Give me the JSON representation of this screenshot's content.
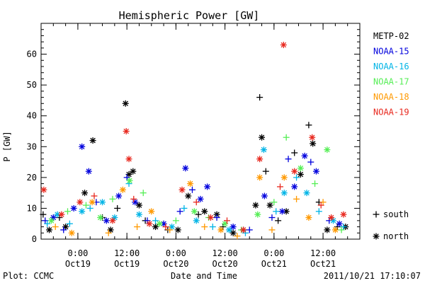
{
  "chart_data": {
    "type": "scatter",
    "title": "Hemispheric Power [GW]",
    "ylabel": "P [GW]",
    "xlabel": "Date and Time",
    "ylim": [
      0,
      70
    ],
    "yticks": [
      0,
      10,
      20,
      30,
      40,
      50,
      60
    ],
    "xlim": [
      "2011-10-18T15:00",
      "2011-10-21T21:00"
    ],
    "xticks": [
      {
        "time": "2011-10-19T00:00",
        "label_time": "0:00",
        "label_date": "Oct19"
      },
      {
        "time": "2011-10-19T12:00",
        "label_time": "12:00",
        "label_date": "Oct19"
      },
      {
        "time": "2011-10-20T00:00",
        "label_time": "0:00",
        "label_date": "Oct20"
      },
      {
        "time": "2011-10-20T12:00",
        "label_time": "12:00",
        "label_date": "Oct20"
      },
      {
        "time": "2011-10-21T00:00",
        "label_time": "0:00",
        "label_date": "Oct21"
      },
      {
        "time": "2011-10-21T12:00",
        "label_time": "12:00",
        "label_date": "Oct21"
      }
    ],
    "symbols": [
      {
        "marker": "+",
        "label": "south"
      },
      {
        "marker": "*",
        "label": "north"
      }
    ],
    "series": [
      {
        "name": "METP-02",
        "color": "#000000",
        "points": [
          [
            "2011-10-18T15:30",
            8,
            "+"
          ],
          [
            "2011-10-18T17:00",
            3,
            "*"
          ],
          [
            "2011-10-18T19:30",
            7,
            "+"
          ],
          [
            "2011-10-18T21:00",
            4,
            "*"
          ],
          [
            "2011-10-19T01:40",
            15,
            "*"
          ],
          [
            "2011-10-19T03:40",
            32,
            "*"
          ],
          [
            "2011-10-19T06:00",
            7,
            "+"
          ],
          [
            "2011-10-19T08:00",
            3,
            "*"
          ],
          [
            "2011-10-19T09:40",
            10,
            "+"
          ],
          [
            "2011-10-19T11:40",
            44,
            "*"
          ],
          [
            "2011-10-19T12:30",
            21,
            "*"
          ],
          [
            "2011-10-19T13:30",
            22,
            "*"
          ],
          [
            "2011-10-19T15:00",
            11,
            "*"
          ],
          [
            "2011-10-19T16:30",
            6,
            "+"
          ],
          [
            "2011-10-19T19:00",
            4,
            "*"
          ],
          [
            "2011-10-19T22:00",
            3,
            "+"
          ],
          [
            "2011-10-20T00:30",
            3,
            "*"
          ],
          [
            "2011-10-20T03:00",
            14,
            "*"
          ],
          [
            "2011-10-20T05:30",
            8,
            "+"
          ],
          [
            "2011-10-20T07:00",
            9,
            "*"
          ],
          [
            "2011-10-20T10:00",
            8,
            "*"
          ],
          [
            "2011-10-20T11:30",
            4,
            "+"
          ],
          [
            "2011-10-20T14:00",
            2,
            "*"
          ],
          [
            "2011-10-20T16:30",
            3,
            "+"
          ],
          [
            "2011-10-20T19:30",
            11,
            "*"
          ],
          [
            "2011-10-20T20:30",
            46,
            "+"
          ],
          [
            "2011-10-20T21:00",
            33,
            "*"
          ],
          [
            "2011-10-20T22:00",
            22,
            "+"
          ],
          [
            "2011-10-20T23:00",
            11,
            "*"
          ],
          [
            "2011-10-21T01:00",
            6,
            "+"
          ],
          [
            "2011-10-21T03:00",
            9,
            "*"
          ],
          [
            "2011-10-21T05:00",
            28,
            "+"
          ],
          [
            "2011-10-21T06:30",
            21,
            "*"
          ],
          [
            "2011-10-21T08:30",
            37,
            "+"
          ],
          [
            "2011-10-21T09:30",
            31,
            "*"
          ],
          [
            "2011-10-21T11:00",
            12,
            "+"
          ],
          [
            "2011-10-21T13:00",
            3,
            "*"
          ],
          [
            "2011-10-21T15:30",
            4,
            "+"
          ],
          [
            "2011-10-21T17:30",
            4,
            "*"
          ]
        ]
      },
      {
        "name": "NOAA-15",
        "color": "#0000dd",
        "points": [
          [
            "2011-10-18T16:00",
            6,
            "+"
          ],
          [
            "2011-10-18T18:00",
            7,
            "*"
          ],
          [
            "2011-10-18T20:30",
            3,
            "+"
          ],
          [
            "2011-10-18T23:00",
            10,
            "*"
          ],
          [
            "2011-10-19T01:00",
            30,
            "*"
          ],
          [
            "2011-10-19T02:40",
            22,
            "*"
          ],
          [
            "2011-10-19T04:30",
            12,
            "+"
          ],
          [
            "2011-10-19T07:00",
            6,
            "*"
          ],
          [
            "2011-10-19T10:00",
            14,
            "*"
          ],
          [
            "2011-10-19T12:00",
            20,
            "+"
          ],
          [
            "2011-10-19T14:00",
            12,
            "*"
          ],
          [
            "2011-10-19T17:00",
            6,
            "+"
          ],
          [
            "2011-10-19T21:00",
            5,
            "*"
          ],
          [
            "2011-10-20T01:00",
            9,
            "+"
          ],
          [
            "2011-10-20T02:20",
            23,
            "*"
          ],
          [
            "2011-10-20T04:00",
            16,
            "+"
          ],
          [
            "2011-10-20T06:00",
            13,
            "*"
          ],
          [
            "2011-10-20T07:40",
            17,
            "*"
          ],
          [
            "2011-10-20T10:00",
            7,
            "+"
          ],
          [
            "2011-10-20T14:00",
            4,
            "*"
          ],
          [
            "2011-10-20T18:00",
            3,
            "+"
          ],
          [
            "2011-10-20T21:40",
            14,
            "*"
          ],
          [
            "2011-10-20T23:30",
            7,
            "+"
          ],
          [
            "2011-10-21T02:00",
            9,
            "*"
          ],
          [
            "2011-10-21T03:30",
            26,
            "+"
          ],
          [
            "2011-10-21T05:00",
            17,
            "*"
          ],
          [
            "2011-10-21T07:30",
            27,
            "*"
          ],
          [
            "2011-10-21T09:00",
            25,
            "+"
          ],
          [
            "2011-10-21T10:20",
            22,
            "*"
          ],
          [
            "2011-10-21T13:30",
            6,
            "+"
          ],
          [
            "2011-10-21T16:00",
            5,
            "*"
          ]
        ]
      },
      {
        "name": "NOAA-16",
        "color": "#00b4e6",
        "points": [
          [
            "2011-10-18T16:30",
            5,
            "+"
          ],
          [
            "2011-10-18T19:00",
            8,
            "*"
          ],
          [
            "2011-10-18T22:00",
            5,
            "+"
          ],
          [
            "2011-10-19T01:00",
            9,
            "*"
          ],
          [
            "2011-10-19T03:00",
            10,
            "+"
          ],
          [
            "2011-10-19T06:00",
            12,
            "*"
          ],
          [
            "2011-10-19T09:00",
            7,
            "*"
          ],
          [
            "2011-10-19T12:30",
            18,
            "+"
          ],
          [
            "2011-10-19T15:00",
            8,
            "*"
          ],
          [
            "2011-10-19T19:00",
            6,
            "+"
          ],
          [
            "2011-10-19T23:00",
            4,
            "*"
          ],
          [
            "2011-10-20T02:00",
            10,
            "+"
          ],
          [
            "2011-10-20T05:00",
            6,
            "*"
          ],
          [
            "2011-10-20T09:00",
            4,
            "+"
          ],
          [
            "2011-10-20T13:00",
            3,
            "*"
          ],
          [
            "2011-10-20T17:00",
            2,
            "+"
          ],
          [
            "2011-10-20T21:30",
            29,
            "*"
          ],
          [
            "2011-10-21T00:30",
            9,
            "+"
          ],
          [
            "2011-10-21T02:30",
            15,
            "*"
          ],
          [
            "2011-10-21T05:30",
            20,
            "+"
          ],
          [
            "2011-10-21T08:00",
            15,
            "*"
          ],
          [
            "2011-10-21T11:00",
            9,
            "+"
          ],
          [
            "2011-10-21T14:30",
            6,
            "*"
          ],
          [
            "2011-10-21T17:00",
            4,
            "+"
          ]
        ]
      },
      {
        "name": "NOAA-17",
        "color": "#55ee55",
        "points": [
          [
            "2011-10-18T17:30",
            6,
            "*"
          ],
          [
            "2011-10-18T21:30",
            9,
            "+"
          ],
          [
            "2011-10-19T02:00",
            11,
            "+"
          ],
          [
            "2011-10-19T05:30",
            7,
            "*"
          ],
          [
            "2011-10-19T08:30",
            13,
            "+"
          ],
          [
            "2011-10-19T12:40",
            19,
            "*"
          ],
          [
            "2011-10-19T16:00",
            15,
            "+"
          ],
          [
            "2011-10-19T20:00",
            5,
            "*"
          ],
          [
            "2011-10-20T00:00",
            6,
            "+"
          ],
          [
            "2011-10-20T04:30",
            9,
            "*"
          ],
          [
            "2011-10-20T08:00",
            7,
            "+"
          ],
          [
            "2011-10-20T12:00",
            5,
            "*"
          ],
          [
            "2011-10-20T16:00",
            3,
            "+"
          ],
          [
            "2011-10-20T20:00",
            8,
            "*"
          ],
          [
            "2011-10-21T00:00",
            12,
            "+"
          ],
          [
            "2011-10-21T03:00",
            33,
            "+"
          ],
          [
            "2011-10-21T06:30",
            23,
            "*"
          ],
          [
            "2011-10-21T10:00",
            18,
            "+"
          ],
          [
            "2011-10-21T13:00",
            29,
            "*"
          ],
          [
            "2011-10-21T16:30",
            3,
            "+"
          ]
        ]
      },
      {
        "name": "NOAA-18",
        "color": "#ff9900",
        "points": [
          [
            "2011-10-18T18:30",
            4,
            "+"
          ],
          [
            "2011-10-18T22:30",
            2,
            "*"
          ],
          [
            "2011-10-19T03:30",
            12,
            "*"
          ],
          [
            "2011-10-19T07:30",
            2,
            "+"
          ],
          [
            "2011-10-19T11:00",
            16,
            "*"
          ],
          [
            "2011-10-19T14:30",
            4,
            "+"
          ],
          [
            "2011-10-19T18:00",
            9,
            "*"
          ],
          [
            "2011-10-19T22:30",
            3,
            "+"
          ],
          [
            "2011-10-20T03:30",
            18,
            "*"
          ],
          [
            "2011-10-20T07:00",
            4,
            "+"
          ],
          [
            "2011-10-20T11:00",
            3,
            "*"
          ],
          [
            "2011-10-20T15:00",
            1,
            "+"
          ],
          [
            "2011-10-20T20:30",
            20,
            "*"
          ],
          [
            "2011-10-20T23:30",
            3,
            "+"
          ],
          [
            "2011-10-21T02:30",
            20,
            "*"
          ],
          [
            "2011-10-21T05:30",
            13,
            "+"
          ],
          [
            "2011-10-21T08:30",
            7,
            "*"
          ],
          [
            "2011-10-21T12:00",
            12,
            "+"
          ],
          [
            "2011-10-21T15:00",
            3,
            "*"
          ]
        ]
      },
      {
        "name": "NOAA-19",
        "color": "#e8281e",
        "points": [
          [
            "2011-10-18T15:40",
            16,
            "*"
          ],
          [
            "2011-10-18T20:00",
            8,
            "*"
          ],
          [
            "2011-10-19T00:30",
            12,
            "*"
          ],
          [
            "2011-10-19T04:00",
            14,
            "+"
          ],
          [
            "2011-10-19T08:30",
            6,
            "*"
          ],
          [
            "2011-10-19T11:50",
            35,
            "*"
          ],
          [
            "2011-10-19T12:30",
            26,
            "*"
          ],
          [
            "2011-10-19T13:40",
            13,
            "+"
          ],
          [
            "2011-10-19T17:30",
            5,
            "*"
          ],
          [
            "2011-10-19T21:30",
            4,
            "+"
          ],
          [
            "2011-10-20T01:30",
            16,
            "*"
          ],
          [
            "2011-10-20T05:00",
            12,
            "+"
          ],
          [
            "2011-10-20T08:30",
            7,
            "*"
          ],
          [
            "2011-10-20T12:30",
            6,
            "+"
          ],
          [
            "2011-10-20T16:30",
            3,
            "*"
          ],
          [
            "2011-10-20T20:30",
            26,
            "*"
          ],
          [
            "2011-10-21T01:30",
            17,
            "+"
          ],
          [
            "2011-10-21T02:20",
            63,
            "*"
          ],
          [
            "2011-10-21T05:00",
            22,
            "*"
          ],
          [
            "2011-10-21T09:20",
            33,
            "*"
          ],
          [
            "2011-10-21T11:30",
            11,
            "+"
          ],
          [
            "2011-10-21T14:00",
            7,
            "*"
          ],
          [
            "2011-10-21T17:00",
            8,
            "*"
          ]
        ]
      }
    ]
  },
  "footer": {
    "left": "Plot: CCMC",
    "center": "Date and Time",
    "right": "2011/10/21 17:10:07"
  }
}
